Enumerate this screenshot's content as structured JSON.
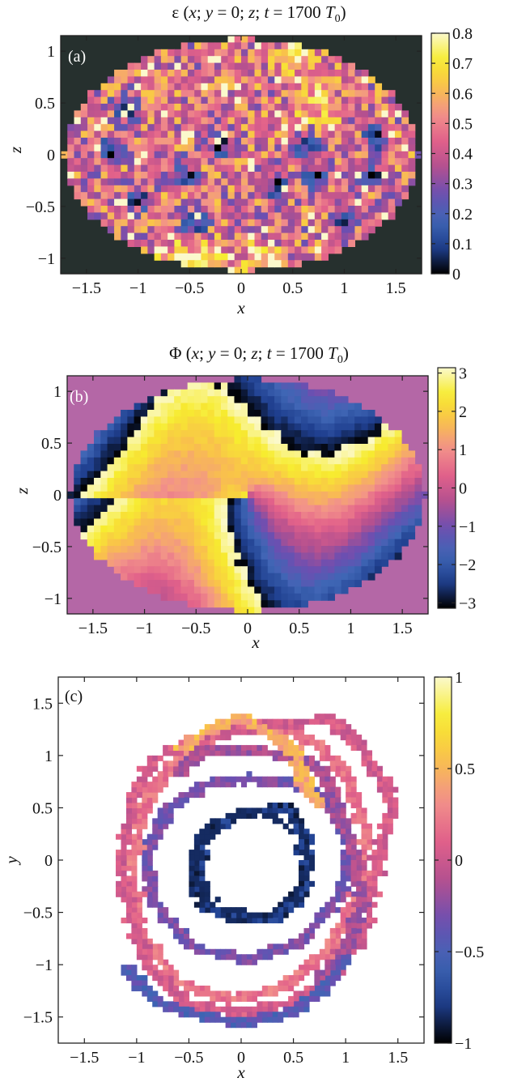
{
  "colors": {
    "plasma_like_stops": [
      "#000000",
      "#1f3f8f",
      "#3f66b5",
      "#6c4fb1",
      "#b4508f",
      "#e2618a",
      "#f2928a",
      "#f9c24a",
      "#f7ec2f",
      "#fbf9cc"
    ],
    "outside_a": "#26302e",
    "outside_b": "#b467a6",
    "background_c": "#ffffff"
  },
  "chart_data": [
    {
      "id": "a",
      "type": "heatmap",
      "panel_label": "(a)",
      "title": "ε (x; y = 0; z; t = 1700 T0)",
      "title_parts": {
        "prefix": "ε (",
        "x": "x",
        "sep1": "; ",
        "y": "y",
        "eq1": " = 0; ",
        "z": "z",
        "sep2": "; ",
        "t": "t",
        "eq2": " = 1700 ",
        "T": "T",
        "sub": "0",
        "close": ")"
      },
      "xlabel": "x",
      "ylabel": "z",
      "xlim": [
        -1.75,
        1.75
      ],
      "ylim": [
        -1.15,
        1.15
      ],
      "xticks": [
        -1.5,
        -1,
        -0.5,
        0,
        0.5,
        1,
        1.5
      ],
      "xtick_labels": [
        "−1.5",
        "−1",
        "−0.5",
        "0",
        "0.5",
        "1",
        "1.5"
      ],
      "yticks": [
        -1,
        -0.5,
        0,
        0.5,
        1
      ],
      "ytick_labels": [
        "−1",
        "−0.5",
        "0",
        "0.5",
        "1"
      ],
      "colorbar": {
        "min": 0,
        "max": 0.8,
        "ticks": [
          0,
          0.1,
          0.2,
          0.3,
          0.4,
          0.5,
          0.6,
          0.7,
          0.8
        ],
        "tick_labels": [
          "0",
          "0.1",
          "0.2",
          "0.3",
          "0.4",
          "0.5",
          "0.6",
          "0.7",
          "0.8"
        ]
      },
      "domain": {
        "shape": "ellipse",
        "semi_x": 1.72,
        "semi_z": 1.12
      },
      "description_of_field": {
        "mean_value": 0.45,
        "spread": 0.15,
        "low_spots": [
          [
            -1.1,
            0.45
          ],
          [
            -1.25,
            0.05
          ],
          [
            -1.0,
            -0.42
          ],
          [
            -0.55,
            -0.18
          ],
          [
            -0.45,
            -0.68
          ],
          [
            0.35,
            -0.3
          ],
          [
            0.65,
            0.05
          ],
          [
            0.7,
            -0.22
          ],
          [
            1.0,
            -0.6
          ],
          [
            1.3,
            0.15
          ],
          [
            1.25,
            -0.2
          ],
          [
            -0.2,
            0.08
          ]
        ],
        "bright_spots": [
          [
            -0.3,
            -1.0
          ],
          [
            0.2,
            -1.05
          ],
          [
            0.75,
            0.5
          ],
          [
            -0.6,
            -1.02
          ],
          [
            0.55,
            0.98
          ]
        ]
      }
    },
    {
      "id": "b",
      "type": "heatmap",
      "panel_label": "(b)",
      "title": "Φ (x; y = 0; z; t = 1700 T0)",
      "title_parts": {
        "prefix": "Φ (",
        "x": "x",
        "sep1": "; ",
        "y": "y",
        "eq1": " = 0; ",
        "z": "z",
        "sep2": "; ",
        "t": "t",
        "eq2": " = 1700 ",
        "T": "T",
        "sub": "0",
        "close": ")"
      },
      "xlabel": "x",
      "ylabel": "z",
      "xlim": [
        -1.75,
        1.75
      ],
      "ylim": [
        -1.15,
        1.15
      ],
      "xticks": [
        -1.5,
        -1,
        -0.5,
        0,
        0.5,
        1,
        1.5
      ],
      "xtick_labels": [
        "−1.5",
        "−1",
        "−0.5",
        "0",
        "0.5",
        "1",
        "1.5"
      ],
      "yticks": [
        -1,
        -0.5,
        0,
        0.5,
        1
      ],
      "ytick_labels": [
        "−1",
        "−0.5",
        "0",
        "0.5",
        "1"
      ],
      "colorbar": {
        "min": -3.14,
        "max": 3.14,
        "ticks": [
          -3,
          -2,
          -1,
          0,
          1,
          2,
          3
        ],
        "tick_labels": [
          "−3",
          "−2",
          "−1",
          "0",
          "1",
          "2",
          "3"
        ]
      },
      "domain": {
        "shape": "ellipse",
        "semi_x": 1.72,
        "semi_z": 1.12
      },
      "description_of_field": {
        "outside_value": 0,
        "phase_wrapping": true
      }
    },
    {
      "id": "c",
      "type": "heatmap",
      "panel_label": "(c)",
      "title": "",
      "xlabel": "x",
      "ylabel": "y",
      "xlim": [
        -1.75,
        1.75
      ],
      "ylim": [
        -1.75,
        1.75
      ],
      "xticks": [
        -1.5,
        -1,
        -0.5,
        0,
        0.5,
        1,
        1.5
      ],
      "xtick_labels": [
        "−1.5",
        "−1",
        "−0.5",
        "0",
        "0.5",
        "1",
        "1.5"
      ],
      "yticks": [
        -1.5,
        -1,
        -0.5,
        0,
        0.5,
        1,
        1.5
      ],
      "ytick_labels": [
        "−1.5",
        "−1",
        "−0.5",
        "0",
        "0.5",
        "1",
        "1.5"
      ],
      "colorbar": {
        "min": -1,
        "max": 1,
        "ticks": [
          -1,
          -0.5,
          0,
          0.5,
          1
        ],
        "tick_labels": [
          "−1",
          "−0.5",
          "0",
          "0.5",
          "1"
        ]
      },
      "description_of_field": {
        "ring_paths": [
          {
            "value": -0.8,
            "points": [
              [
                -0.45,
                -0.15
              ],
              [
                -0.35,
                0.25
              ],
              [
                0.0,
                0.45
              ],
              [
                0.45,
                0.5
              ],
              [
                0.62,
                0.2
              ],
              [
                0.62,
                -0.25
              ],
              [
                0.35,
                -0.55
              ],
              [
                -0.05,
                -0.55
              ],
              [
                -0.35,
                -0.45
              ],
              [
                -0.45,
                -0.15
              ]
            ]
          },
          {
            "value": -0.3,
            "points": [
              [
                -0.85,
                -0.4
              ],
              [
                -0.9,
                0.1
              ],
              [
                -0.7,
                0.5
              ],
              [
                -0.35,
                0.72
              ],
              [
                0.05,
                0.78
              ],
              [
                0.5,
                0.75
              ],
              [
                0.85,
                0.55
              ],
              [
                1.05,
                0.15
              ],
              [
                0.95,
                -0.35
              ],
              [
                0.6,
                -0.75
              ],
              [
                0.1,
                -0.95
              ],
              [
                -0.45,
                -0.85
              ],
              [
                -0.85,
                -0.4
              ]
            ]
          },
          {
            "value": 0.2,
            "points": [
              [
                -1.05,
                -0.1
              ],
              [
                -0.95,
                0.5
              ],
              [
                -0.65,
                0.95
              ],
              [
                -0.15,
                1.25
              ],
              [
                0.35,
                1.3
              ],
              [
                0.75,
                1.1
              ],
              [
                1.05,
                0.75
              ],
              [
                1.2,
                0.2
              ],
              [
                1.1,
                -0.35
              ],
              [
                0.85,
                -0.85
              ],
              [
                0.4,
                -1.2
              ],
              [
                -0.1,
                -1.35
              ],
              [
                -0.6,
                -1.15
              ],
              [
                -0.95,
                -0.7
              ],
              [
                -1.05,
                -0.1
              ]
            ]
          },
          {
            "value": 0.05,
            "points": [
              [
                -1.15,
                0.0
              ],
              [
                -1.05,
                0.55
              ],
              [
                -0.85,
                0.95
              ],
              [
                -0.45,
                1.15
              ],
              [
                0.0,
                1.25
              ],
              [
                0.45,
                1.3
              ],
              [
                0.85,
                1.35
              ],
              [
                1.15,
                1.1
              ],
              [
                1.35,
                0.75
              ],
              [
                1.45,
                0.5
              ],
              [
                1.3,
                0.0
              ],
              [
                1.2,
                -0.6
              ],
              [
                0.95,
                -1.05
              ],
              [
                0.55,
                -1.35
              ],
              [
                0.05,
                -1.45
              ],
              [
                -0.5,
                -1.4
              ],
              [
                -0.85,
                -1.05
              ],
              [
                -1.05,
                -0.55
              ],
              [
                -1.15,
                0.0
              ]
            ]
          },
          {
            "value": -0.15,
            "points": [
              [
                -0.6,
                0.85
              ],
              [
                -0.4,
                1.05
              ],
              [
                0.0,
                1.05
              ],
              [
                0.4,
                1.0
              ],
              [
                0.65,
                0.95
              ],
              [
                0.85,
                0.75
              ],
              [
                0.95,
                0.4
              ],
              [
                1.1,
                0.0
              ],
              [
                1.15,
                -0.45
              ],
              [
                1.0,
                -0.85
              ],
              [
                0.75,
                -1.15
              ]
            ]
          },
          {
            "value": -0.45,
            "points": [
              [
                -1.1,
                -1.05
              ],
              [
                -0.8,
                -1.35
              ],
              [
                -0.4,
                -1.5
              ],
              [
                0.05,
                -1.55
              ],
              [
                0.5,
                -1.45
              ],
              [
                0.8,
                -1.2
              ],
              [
                1.0,
                -0.95
              ]
            ]
          },
          {
            "value": 0.45,
            "points": [
              [
                -0.55,
                1.05
              ],
              [
                -0.3,
                1.25
              ],
              [
                0.0,
                1.35
              ],
              [
                0.3,
                1.2
              ],
              [
                0.5,
                1.05
              ],
              [
                0.6,
                0.75
              ],
              [
                0.75,
                0.55
              ]
            ]
          }
        ]
      }
    }
  ]
}
